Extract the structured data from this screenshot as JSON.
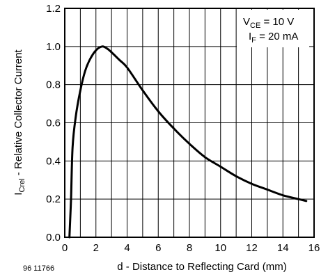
{
  "chart_data": {
    "type": "line",
    "xlabel": "d - Distance to Reflecting Card (mm)",
    "ylabel_main": "I",
    "ylabel_sub": "Crel",
    "ylabel_rest": " - Relative Collector Current",
    "xlim": [
      0,
      16
    ],
    "ylim": [
      0,
      1.2
    ],
    "x_ticks": [
      "0",
      "2",
      "4",
      "6",
      "8",
      "10",
      "12",
      "14",
      "16"
    ],
    "y_ticks": [
      "0.0",
      "0.2",
      "0.4",
      "0.6",
      "0.8",
      "1.0",
      "1.2"
    ],
    "x_minor_step": 1,
    "y_step": 0.2,
    "grid": true,
    "figure_code": "96 11766",
    "conditions": {
      "line1_main": "V",
      "line1_sub": "CE",
      "line1_rest": " = 10 V",
      "line2_main": "I",
      "line2_sub": "F",
      "line2_rest": " = 20 mA",
      "placement": "top-right"
    },
    "series": [
      {
        "x": [
          0.3,
          0.4,
          0.5,
          0.7,
          1.0,
          1.3,
          1.6,
          2.0,
          2.4,
          2.7,
          3.0,
          3.5,
          4.0,
          5.0,
          6.0,
          7.0,
          8.0,
          9.0,
          10.0,
          11.0,
          12.0,
          13.0,
          14.0,
          15.0,
          15.5
        ],
        "y": [
          0.0,
          0.2,
          0.47,
          0.63,
          0.77,
          0.87,
          0.93,
          0.98,
          1.0,
          0.99,
          0.97,
          0.93,
          0.89,
          0.77,
          0.66,
          0.57,
          0.49,
          0.42,
          0.37,
          0.32,
          0.28,
          0.25,
          0.22,
          0.2,
          0.19
        ]
      }
    ]
  }
}
